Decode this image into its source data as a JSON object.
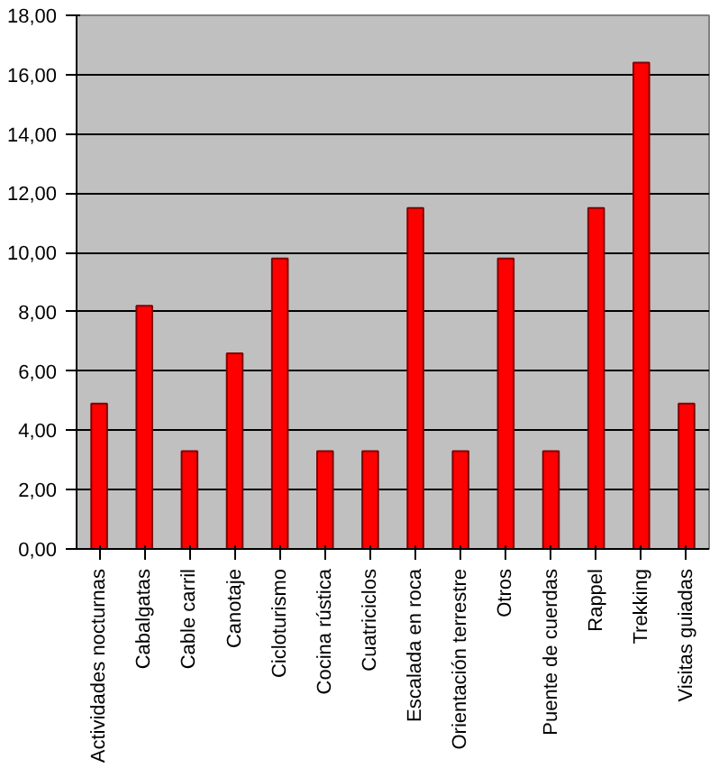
{
  "chart_data": {
    "type": "bar",
    "categories": [
      "Actividades nocturnas",
      "Cabalgatas",
      "Cable carril",
      "Canotaje",
      "Cicloturismo",
      "Cocina rústica",
      "Cuatriciclos",
      "Escalada en roca",
      "Orientación terrestre",
      "Otros",
      "Puente de cuerdas",
      "Rappel",
      "Trekking",
      "Visitas guiadas"
    ],
    "values": [
      4.9,
      8.2,
      3.3,
      6.6,
      9.8,
      3.3,
      3.3,
      11.5,
      3.3,
      9.8,
      3.3,
      11.5,
      16.4,
      4.9
    ],
    "color": "#ff0000",
    "ylim": [
      0,
      18
    ],
    "yticks": [
      {
        "value": 0,
        "label": "0,00"
      },
      {
        "value": 2,
        "label": "2,00"
      },
      {
        "value": 4,
        "label": "4,00"
      },
      {
        "value": 6,
        "label": "6,00"
      },
      {
        "value": 8,
        "label": "8,00"
      },
      {
        "value": 10,
        "label": "10,00"
      },
      {
        "value": 12,
        "label": "12,00"
      },
      {
        "value": 14,
        "label": "14,00"
      },
      {
        "value": 16,
        "label": "16,00"
      },
      {
        "value": 18,
        "label": "18,00"
      }
    ],
    "grid": "y"
  }
}
